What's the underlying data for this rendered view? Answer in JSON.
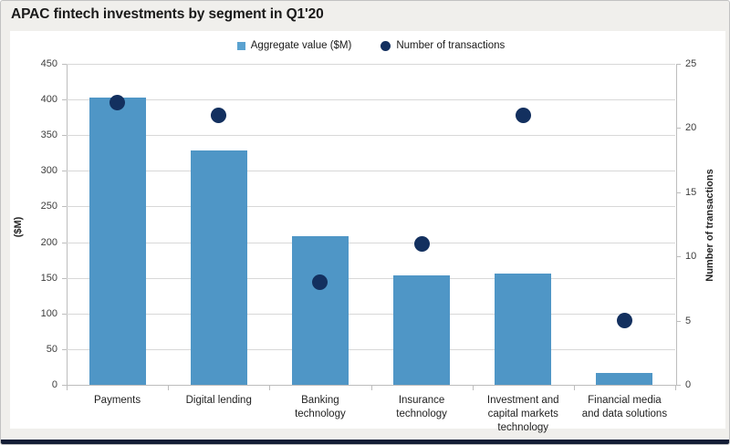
{
  "window": {
    "title": "APAC fintech investments by segment in Q1'20"
  },
  "legend": [
    {
      "label": "Aggregate value ($M)",
      "marker": "square",
      "color": "#5AA2D0"
    },
    {
      "label": "Number of transactions",
      "marker": "circle",
      "color": "#13305F"
    }
  ],
  "chart_data": {
    "type": "bar",
    "subtype": "combo-bar-scatter",
    "title": "APAC fintech investments by segment in Q1'20",
    "categories": [
      "Payments",
      "Digital lending",
      "Banking technology",
      "Insurance technology",
      "Investment and capital markets technology",
      "Financial media and data solutions"
    ],
    "series": [
      {
        "name": "Aggregate value ($M)",
        "type": "bar",
        "axis": "left",
        "color": "#4F96C6",
        "values": [
          403,
          328,
          208,
          153,
          156,
          16
        ]
      },
      {
        "name": "Number of transactions",
        "type": "scatter",
        "axis": "right",
        "color": "#13305F",
        "values": [
          22,
          21,
          8,
          11,
          21,
          5
        ]
      }
    ],
    "left_axis": {
      "label": "($M)",
      "min": 0,
      "max": 450,
      "step": 50,
      "ticks": [
        0,
        50,
        100,
        150,
        200,
        250,
        300,
        350,
        400,
        450
      ]
    },
    "right_axis": {
      "label": "Number of transactions",
      "min": 0,
      "max": 25,
      "step": 5,
      "ticks": [
        0,
        5,
        10,
        15,
        20,
        25
      ]
    },
    "grid": true,
    "legend_position": "top-center"
  },
  "colors": {
    "bar": "#4F96C6",
    "marker": "#13305F",
    "grid": "#D8D8D8",
    "axis": "#BDBDBD",
    "tick_text": "#3D3D3D",
    "panel": "#FFFFFF",
    "background": "#F0EFEC",
    "title_text": "#1A1A1A",
    "bottom_border": "#141E36"
  }
}
